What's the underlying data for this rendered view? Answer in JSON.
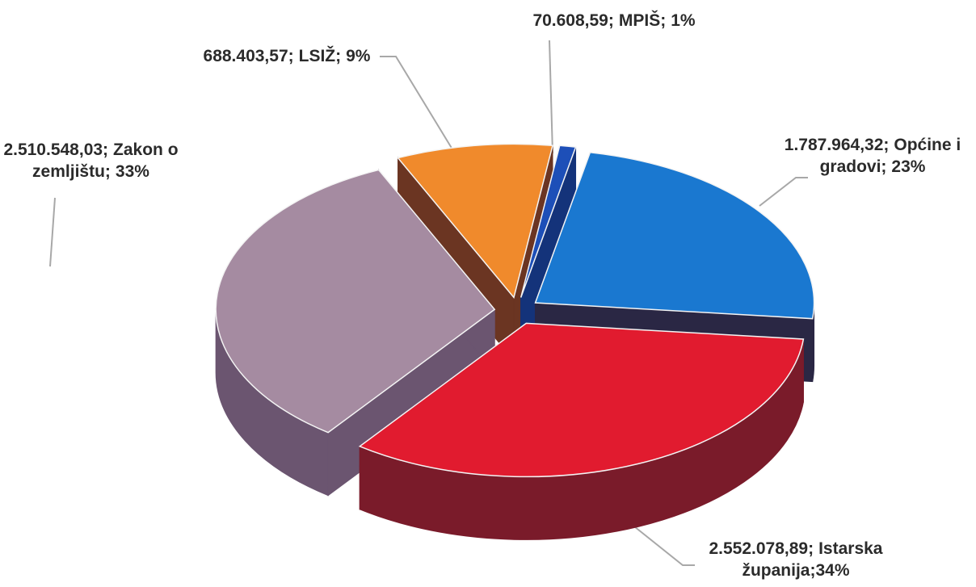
{
  "chart_data": {
    "type": "pie3d",
    "categories": [
      "MPIŠ;",
      "Općine i gradovi;",
      "Istarska županija;",
      "Zakon o zemljištu;",
      "LSIŽ;"
    ],
    "values": [
      70608.59,
      1787964.32,
      2552078.89,
      2510548.03,
      688403.57
    ],
    "value_labels": [
      "70.608,59;",
      "1.787.964,32;",
      "2.552.078,89;",
      "2.510.548,03;",
      "688.403,57;"
    ],
    "percents": [
      1,
      23,
      34,
      33,
      9
    ],
    "percent_labels": [
      "1%",
      "23%",
      "34%",
      "33%",
      "9%"
    ],
    "colors": [
      "#1d4fb8",
      "#1a78d0",
      "#e11b2f",
      "#a58ba1",
      "#f08a2c"
    ],
    "side_colors": [
      "#14337a",
      "#2a2744",
      "#7a1b2a",
      "#6b5570",
      "#6b3522"
    ]
  }
}
